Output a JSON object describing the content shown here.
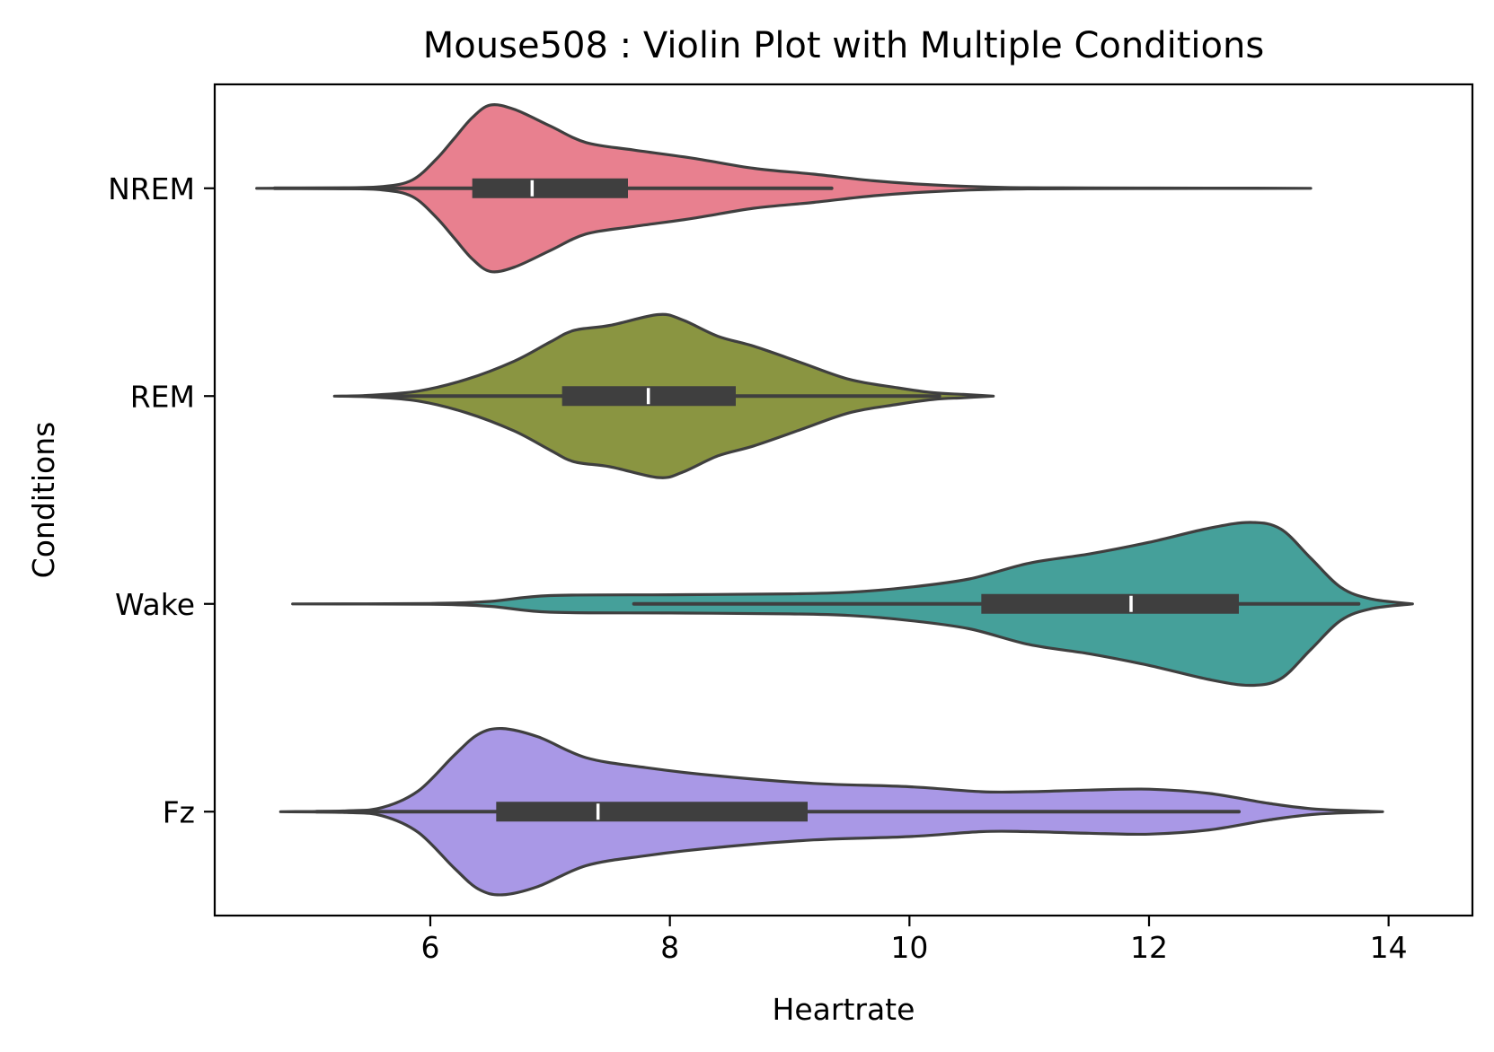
{
  "chart_data": {
    "type": "violin",
    "title": "Mouse508 : Violin Plot with Multiple Conditions",
    "xlabel": "Heartrate",
    "ylabel": "Conditions",
    "xlim": [
      4.2,
      14.7
    ],
    "xticks": [
      6,
      8,
      10,
      12,
      14
    ],
    "xtick_labels": [
      "6",
      "8",
      "10",
      "12",
      "14"
    ],
    "categories": [
      "NREM",
      "REM",
      "Wake",
      "Fz"
    ],
    "grid": false,
    "legend": "none",
    "series": [
      {
        "name": "NREM",
        "color": "#e8808f",
        "range": [
          4.55,
          13.35
        ],
        "whiskers": [
          4.7,
          9.35
        ],
        "q1": 6.35,
        "median": 6.85,
        "q3": 7.65,
        "density": [
          [
            4.55,
            0.0
          ],
          [
            5.2,
            0.005
          ],
          [
            5.6,
            0.02
          ],
          [
            5.85,
            0.1
          ],
          [
            6.05,
            0.35
          ],
          [
            6.2,
            0.6
          ],
          [
            6.35,
            0.85
          ],
          [
            6.5,
            1.0
          ],
          [
            6.7,
            0.95
          ],
          [
            7.0,
            0.75
          ],
          [
            7.3,
            0.55
          ],
          [
            7.7,
            0.46
          ],
          [
            8.2,
            0.36
          ],
          [
            8.7,
            0.24
          ],
          [
            9.2,
            0.17
          ],
          [
            9.7,
            0.09
          ],
          [
            10.2,
            0.04
          ],
          [
            10.8,
            0.01
          ],
          [
            11.5,
            0.005
          ],
          [
            12.5,
            0.002
          ],
          [
            13.35,
            0.0
          ]
        ]
      },
      {
        "name": "REM",
        "color": "#8a9541",
        "range": [
          5.2,
          10.7
        ],
        "whiskers": [
          5.45,
          10.25
        ],
        "q1": 7.1,
        "median": 7.82,
        "q3": 8.55,
        "density": [
          [
            5.2,
            0.0
          ],
          [
            5.5,
            0.01
          ],
          [
            5.9,
            0.06
          ],
          [
            6.3,
            0.2
          ],
          [
            6.7,
            0.42
          ],
          [
            7.0,
            0.65
          ],
          [
            7.2,
            0.79
          ],
          [
            7.5,
            0.85
          ],
          [
            7.9,
            0.98
          ],
          [
            8.1,
            0.92
          ],
          [
            8.4,
            0.72
          ],
          [
            8.7,
            0.6
          ],
          [
            9.1,
            0.4
          ],
          [
            9.5,
            0.2
          ],
          [
            9.9,
            0.1
          ],
          [
            10.2,
            0.04
          ],
          [
            10.45,
            0.02
          ],
          [
            10.7,
            0.0
          ]
        ]
      },
      {
        "name": "Wake",
        "color": "#45a09a",
        "range": [
          4.85,
          14.2
        ],
        "whiskers": [
          7.7,
          13.75
        ],
        "q1": 10.6,
        "median": 11.85,
        "q3": 12.75,
        "density": [
          [
            4.85,
            0.0
          ],
          [
            6.0,
            0.005
          ],
          [
            6.5,
            0.03
          ],
          [
            7.0,
            0.1
          ],
          [
            8.0,
            0.11
          ],
          [
            9.0,
            0.12
          ],
          [
            9.5,
            0.14
          ],
          [
            10.0,
            0.2
          ],
          [
            10.5,
            0.3
          ],
          [
            11.0,
            0.49
          ],
          [
            11.5,
            0.6
          ],
          [
            12.0,
            0.74
          ],
          [
            12.5,
            0.91
          ],
          [
            12.85,
            0.98
          ],
          [
            13.1,
            0.9
          ],
          [
            13.35,
            0.55
          ],
          [
            13.6,
            0.2
          ],
          [
            13.85,
            0.06
          ],
          [
            14.2,
            0.0
          ]
        ]
      },
      {
        "name": "Fz",
        "color": "#a998e6",
        "range": [
          4.75,
          13.95
        ],
        "whiskers": [
          5.05,
          12.75
        ],
        "q1": 6.55,
        "median": 7.4,
        "q3": 9.15,
        "density": [
          [
            4.75,
            0.0
          ],
          [
            5.3,
            0.01
          ],
          [
            5.6,
            0.05
          ],
          [
            5.9,
            0.25
          ],
          [
            6.2,
            0.68
          ],
          [
            6.4,
            0.93
          ],
          [
            6.6,
            1.0
          ],
          [
            6.9,
            0.9
          ],
          [
            7.3,
            0.65
          ],
          [
            7.8,
            0.53
          ],
          [
            8.4,
            0.43
          ],
          [
            9.2,
            0.34
          ],
          [
            10.0,
            0.3
          ],
          [
            10.6,
            0.24
          ],
          [
            11.0,
            0.24
          ],
          [
            11.5,
            0.26
          ],
          [
            12.0,
            0.27
          ],
          [
            12.5,
            0.22
          ],
          [
            13.0,
            0.1
          ],
          [
            13.4,
            0.03
          ],
          [
            13.95,
            0.0
          ]
        ]
      }
    ]
  }
}
